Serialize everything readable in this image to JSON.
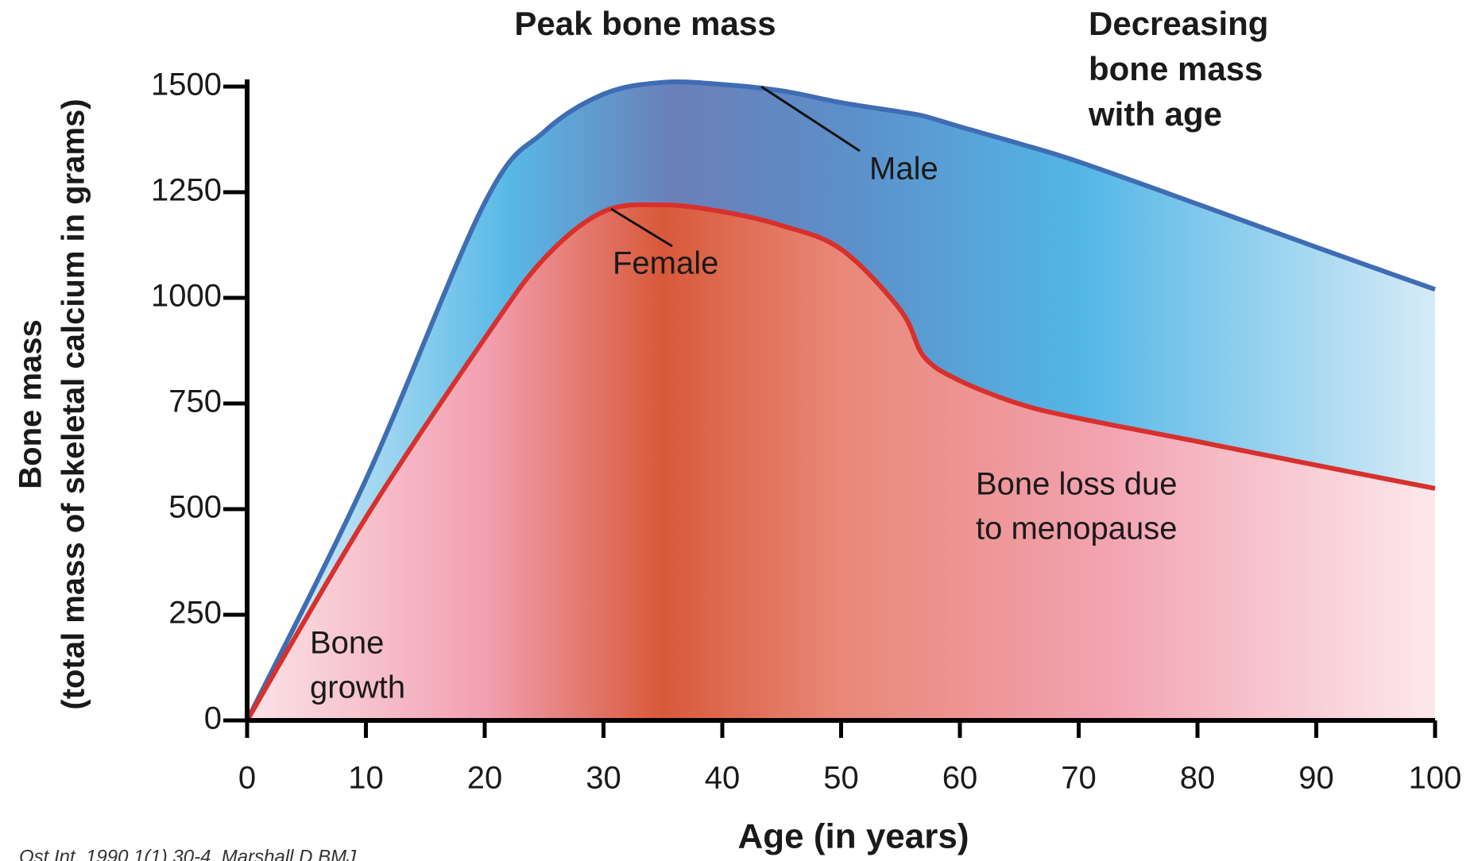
{
  "chart_data": {
    "type": "area",
    "title": "Peak bone mass",
    "annotations": {
      "decreasing": [
        "Decreasing",
        "bone mass",
        "with age"
      ],
      "male": "Male",
      "female": "Female",
      "growth": [
        "Bone",
        "growth"
      ],
      "loss": [
        "Bone loss due",
        "to menopause"
      ],
      "source": "Ost Int. 1990 1(1) 30-4. Marshall D BMJ"
    },
    "x_label": "Age (in years)",
    "y_label": [
      "Bone mass",
      "(total mass of skeletal calcium in grams)"
    ],
    "x": [
      0,
      10,
      20,
      25,
      30,
      35,
      40,
      45,
      50,
      55,
      57,
      60,
      65,
      70,
      80,
      90,
      100
    ],
    "series": [
      {
        "name": "Male",
        "color": "#3f6db3",
        "values": [
          0,
          570,
          1225,
          1393,
          1482,
          1510,
          1505,
          1490,
          1462,
          1440,
          1430,
          1405,
          1365,
          1322,
          1222,
          1120,
          1020
        ]
      },
      {
        "name": "Female",
        "color": "#d8302c",
        "values": [
          0,
          480,
          904,
          1093,
          1204,
          1220,
          1204,
          1171,
          1115,
          971,
          860,
          804,
          749,
          715,
          660,
          604,
          549
        ]
      }
    ],
    "xlim": [
      0,
      100
    ],
    "ylim": [
      0,
      1500
    ],
    "xticks": [
      0,
      10,
      20,
      30,
      40,
      50,
      60,
      70,
      80,
      90,
      100
    ],
    "yticks": [
      0,
      250,
      500,
      750,
      1000,
      1250,
      1500
    ]
  }
}
